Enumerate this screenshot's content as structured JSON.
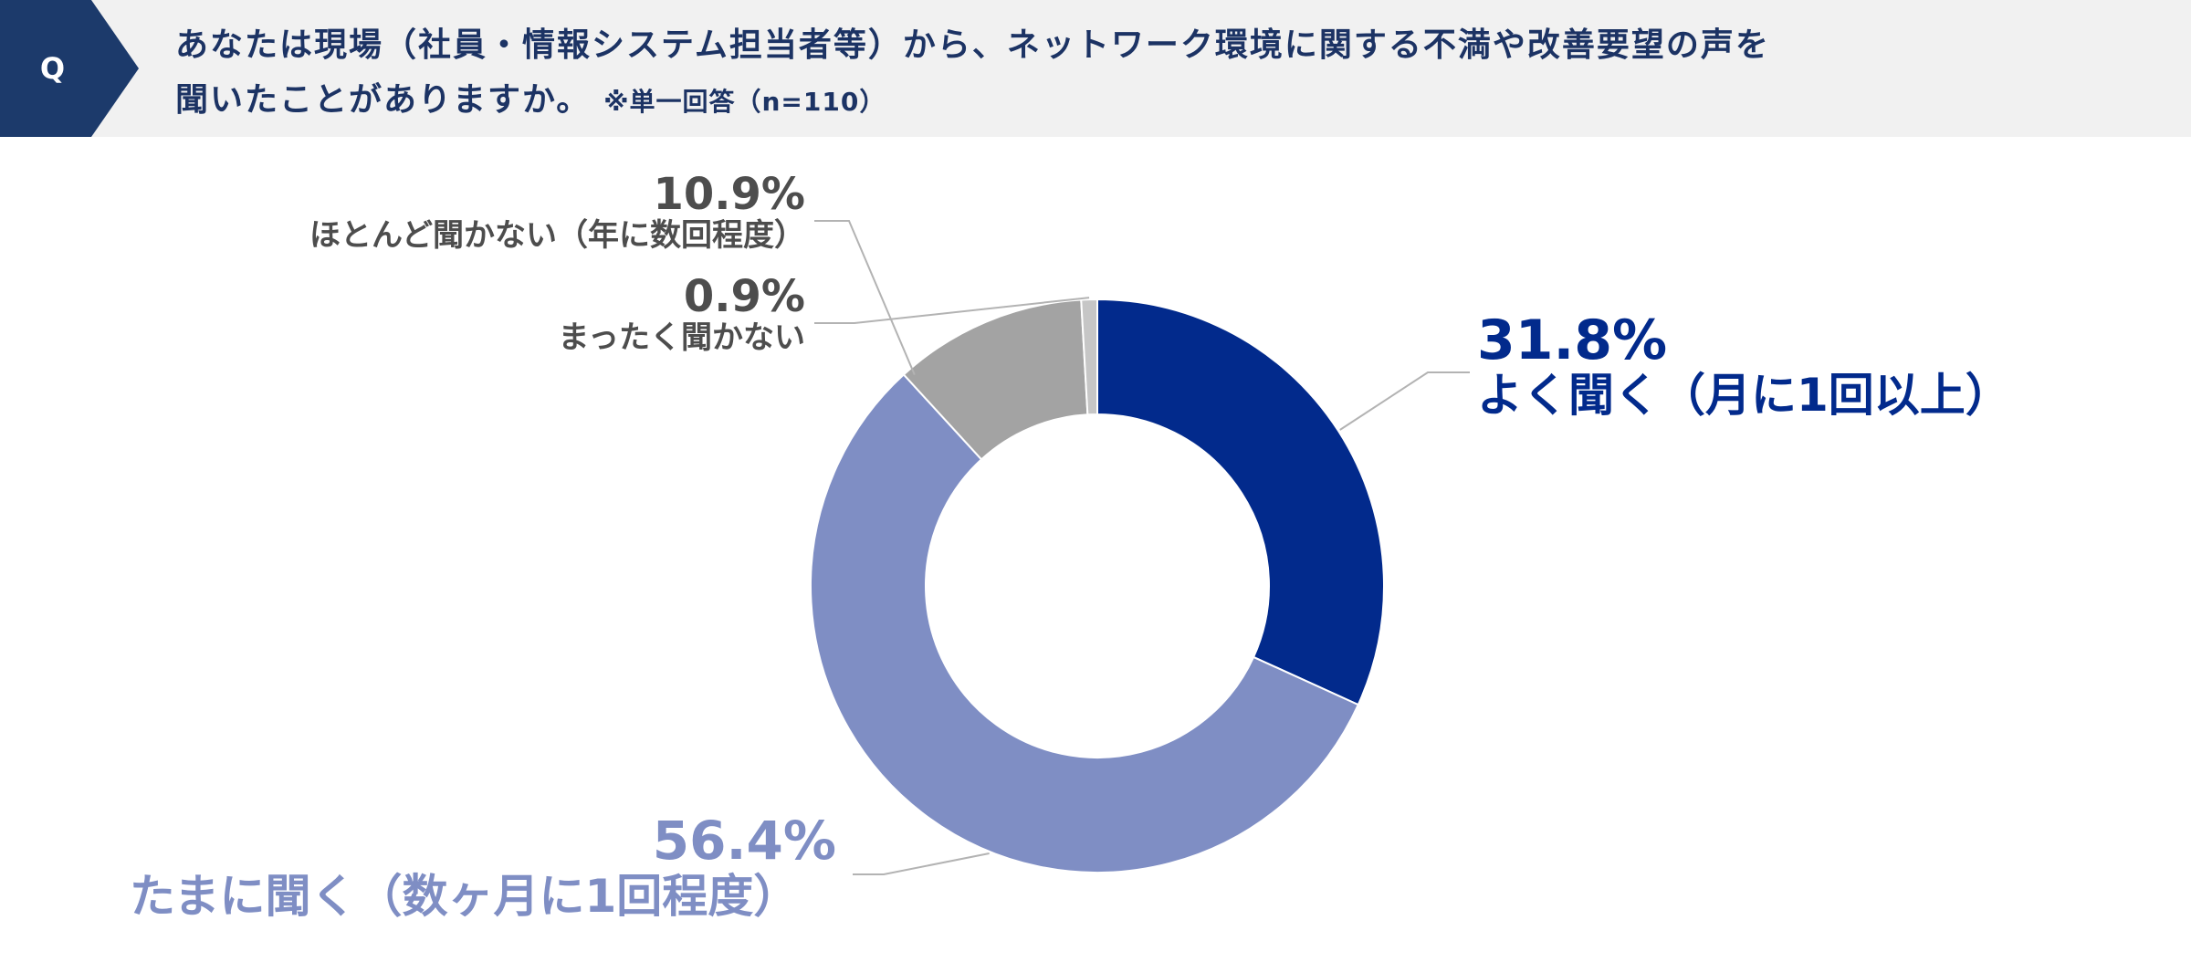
{
  "header": {
    "badge": "Q",
    "question_line1": "あなたは現場（社員・情報システム担当者等）から、ネットワーク環境に関する不満や改善要望の声を",
    "question_line2": "聞いたことがありますか。",
    "note": "※単一回答（n=110）"
  },
  "colors": {
    "header_bg": "#f1f1f1",
    "badge": "#1c3a6b",
    "title_text": "#1c3364",
    "leader_line": "#b3b3b3"
  },
  "chart_data": {
    "type": "donut",
    "n": 110,
    "start_angle_deg": 0,
    "direction": "clockwise",
    "slices": [
      {
        "label": "よく聞く（月に1回以上）",
        "value": 31.8,
        "pct_text": "31.8%",
        "color": "#022a8c"
      },
      {
        "label": "たまに聞く（数ヶ月に1回程度）",
        "value": 56.4,
        "pct_text": "56.4%",
        "color": "#7f8ec4"
      },
      {
        "label": "ほとんど聞かない（年に数回程度）",
        "value": 10.9,
        "pct_text": "10.9%",
        "color": "#a3a3a3"
      },
      {
        "label": "まったく聞かない",
        "value": 0.9,
        "pct_text": "0.9%",
        "color": "#c6c6c6"
      }
    ]
  }
}
